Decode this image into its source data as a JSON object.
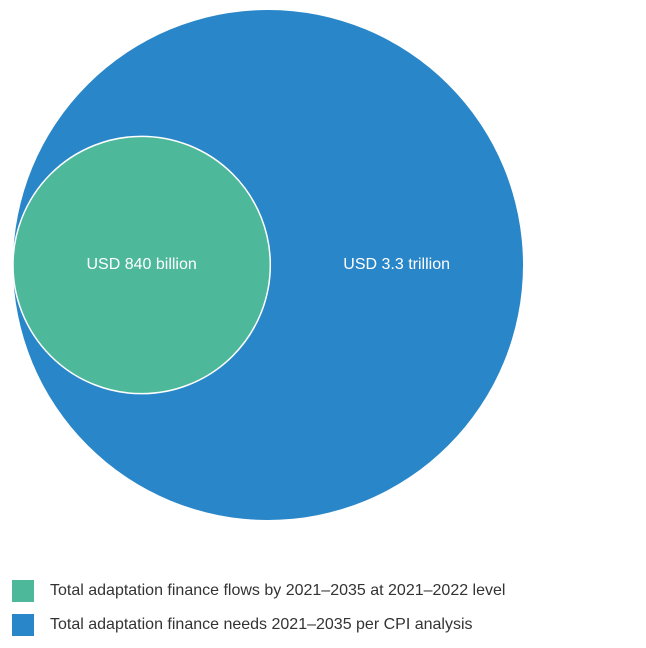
{
  "chart_data": {
    "type": "bubble",
    "title": "",
    "units": "USD",
    "series": [
      {
        "name": "Total adaptation finance flows by 2021–2035 at 2021–2022 level",
        "value": 840,
        "value_unit": "billion",
        "label": "USD 840 billion",
        "color": "#4db89a"
      },
      {
        "name": "Total adaptation finance needs 2021–2035 per CPI analysis",
        "value": 3300,
        "value_unit": "billion",
        "label": "USD 3.3 trillion",
        "color": "#2986c8"
      }
    ],
    "legend_placement": "bottom-left"
  }
}
